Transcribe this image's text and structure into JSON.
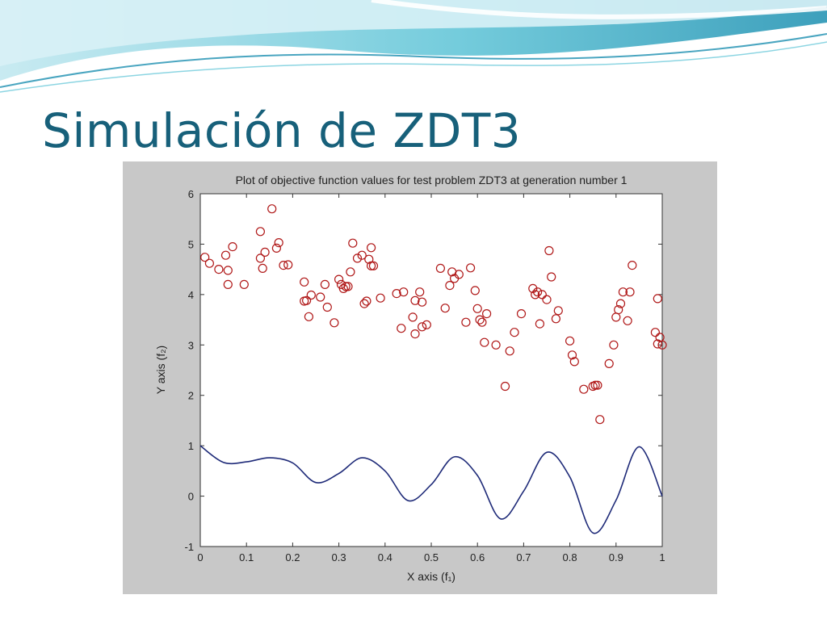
{
  "slide": {
    "title": "Simulación de ZDT3"
  },
  "colors": {
    "title": "#17607a",
    "figure_background": "#c8c8c8",
    "plot_background": "#ffffff",
    "marker": "#b01818",
    "curve": "#1e2a78",
    "banner_light": "#bfe7ef",
    "banner_mid": "#5cc3d6",
    "banner_dark": "#1b8fb0"
  },
  "chart_data": {
    "type": "scatter",
    "title": "Plot of objective function values for test problem ZDT3 at generation number 1",
    "xlabel": "X axis (f₁)",
    "ylabel": "Y axis (f₂)",
    "xlim": [
      0,
      1
    ],
    "ylim": [
      -1,
      6
    ],
    "xticks": [
      "0",
      "0.1",
      "0.2",
      "0.3",
      "0.4",
      "0.5",
      "0.6",
      "0.7",
      "0.8",
      "0.9",
      "1"
    ],
    "yticks": [
      "-1",
      "0",
      "1",
      "2",
      "3",
      "4",
      "5",
      "6"
    ],
    "grid": false,
    "legend": "none",
    "series": [
      {
        "kind": "scatter",
        "marker": "circle-open",
        "points": [
          [
            0.01,
            4.74
          ],
          [
            0.02,
            4.62
          ],
          [
            0.04,
            4.5
          ],
          [
            0.055,
            4.78
          ],
          [
            0.06,
            4.48
          ],
          [
            0.06,
            4.2
          ],
          [
            0.07,
            4.95
          ],
          [
            0.095,
            4.2
          ],
          [
            0.13,
            5.25
          ],
          [
            0.13,
            4.72
          ],
          [
            0.135,
            4.52
          ],
          [
            0.14,
            4.84
          ],
          [
            0.155,
            5.7
          ],
          [
            0.165,
            4.92
          ],
          [
            0.17,
            5.03
          ],
          [
            0.18,
            4.58
          ],
          [
            0.19,
            4.59
          ],
          [
            0.225,
            4.25
          ],
          [
            0.225,
            3.87
          ],
          [
            0.23,
            3.88
          ],
          [
            0.235,
            3.56
          ],
          [
            0.24,
            3.99
          ],
          [
            0.26,
            3.95
          ],
          [
            0.275,
            3.75
          ],
          [
            0.27,
            4.2
          ],
          [
            0.29,
            3.44
          ],
          [
            0.3,
            4.3
          ],
          [
            0.305,
            4.2
          ],
          [
            0.31,
            4.12
          ],
          [
            0.315,
            4.16
          ],
          [
            0.32,
            4.16
          ],
          [
            0.325,
            4.45
          ],
          [
            0.33,
            5.02
          ],
          [
            0.34,
            4.72
          ],
          [
            0.35,
            4.78
          ],
          [
            0.355,
            3.82
          ],
          [
            0.36,
            3.87
          ],
          [
            0.365,
            4.7
          ],
          [
            0.37,
            4.57
          ],
          [
            0.37,
            4.93
          ],
          [
            0.375,
            4.57
          ],
          [
            0.39,
            3.93
          ],
          [
            0.425,
            4.02
          ],
          [
            0.435,
            3.33
          ],
          [
            0.44,
            4.05
          ],
          [
            0.46,
            3.55
          ],
          [
            0.465,
            3.88
          ],
          [
            0.465,
            3.22
          ],
          [
            0.475,
            4.05
          ],
          [
            0.48,
            3.85
          ],
          [
            0.48,
            3.36
          ],
          [
            0.49,
            3.4
          ],
          [
            0.52,
            4.52
          ],
          [
            0.53,
            3.73
          ],
          [
            0.54,
            4.18
          ],
          [
            0.545,
            4.45
          ],
          [
            0.55,
            4.32
          ],
          [
            0.56,
            4.4
          ],
          [
            0.575,
            3.45
          ],
          [
            0.585,
            4.53
          ],
          [
            0.595,
            4.08
          ],
          [
            0.6,
            3.72
          ],
          [
            0.605,
            3.5
          ],
          [
            0.61,
            3.45
          ],
          [
            0.615,
            3.05
          ],
          [
            0.62,
            3.62
          ],
          [
            0.64,
            3.0
          ],
          [
            0.66,
            2.18
          ],
          [
            0.67,
            2.88
          ],
          [
            0.68,
            3.25
          ],
          [
            0.695,
            3.62
          ],
          [
            0.72,
            4.12
          ],
          [
            0.725,
            4.0
          ],
          [
            0.73,
            4.05
          ],
          [
            0.735,
            3.42
          ],
          [
            0.74,
            4.0
          ],
          [
            0.75,
            3.9
          ],
          [
            0.755,
            4.87
          ],
          [
            0.76,
            4.35
          ],
          [
            0.77,
            3.52
          ],
          [
            0.775,
            3.68
          ],
          [
            0.8,
            3.08
          ],
          [
            0.805,
            2.8
          ],
          [
            0.81,
            2.67
          ],
          [
            0.83,
            2.12
          ],
          [
            0.85,
            2.18
          ],
          [
            0.855,
            2.2
          ],
          [
            0.86,
            2.2
          ],
          [
            0.865,
            1.52
          ],
          [
            0.885,
            2.63
          ],
          [
            0.895,
            3.0
          ],
          [
            0.9,
            3.55
          ],
          [
            0.905,
            3.7
          ],
          [
            0.91,
            3.82
          ],
          [
            0.915,
            4.05
          ],
          [
            0.925,
            3.48
          ],
          [
            0.93,
            4.05
          ],
          [
            0.935,
            4.58
          ],
          [
            0.985,
            3.25
          ],
          [
            0.99,
            3.02
          ],
          [
            0.99,
            3.92
          ],
          [
            0.995,
            3.15
          ],
          [
            1.0,
            3.0
          ]
        ]
      },
      {
        "kind": "line",
        "points": [
          [
            0.0,
            1.0
          ],
          [
            0.05,
            0.67
          ],
          [
            0.1,
            0.68
          ],
          [
            0.15,
            0.76
          ],
          [
            0.2,
            0.66
          ],
          [
            0.25,
            0.27
          ],
          [
            0.3,
            0.45
          ],
          [
            0.35,
            0.76
          ],
          [
            0.4,
            0.5
          ],
          [
            0.45,
            -0.09
          ],
          [
            0.5,
            0.23
          ],
          [
            0.55,
            0.78
          ],
          [
            0.6,
            0.41
          ],
          [
            0.65,
            -0.45
          ],
          [
            0.7,
            0.1
          ],
          [
            0.75,
            0.87
          ],
          [
            0.8,
            0.38
          ],
          [
            0.85,
            -0.73
          ],
          [
            0.9,
            -0.08
          ],
          [
            0.95,
            0.98
          ],
          [
            1.0,
            0.0
          ]
        ]
      }
    ]
  }
}
